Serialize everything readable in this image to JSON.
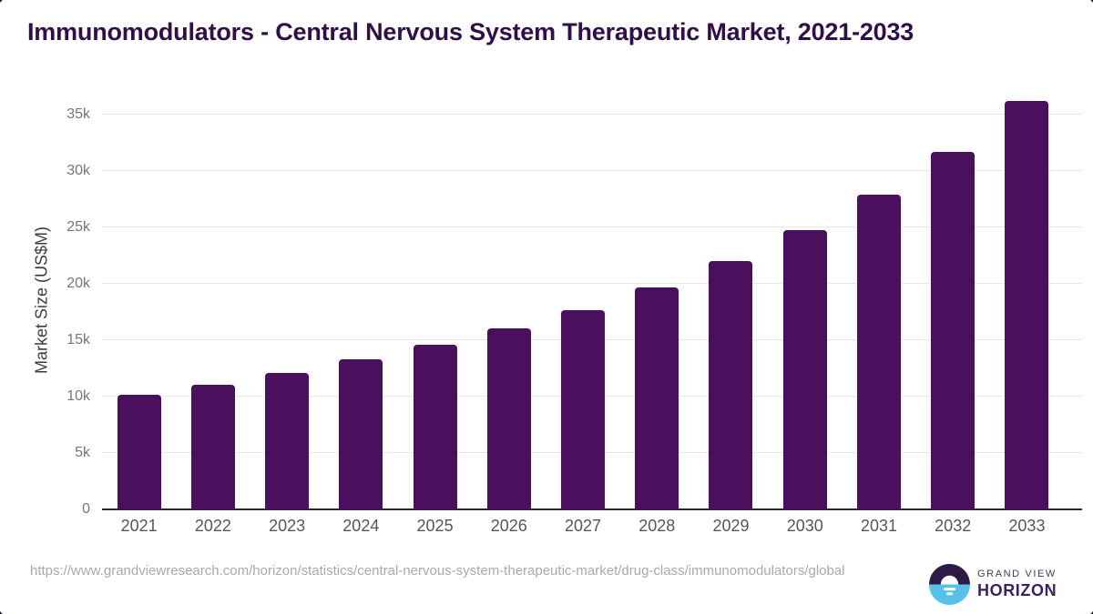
{
  "page": {
    "background": "#ffffff"
  },
  "chart_data": {
    "type": "bar",
    "title": "Immunomodulators - Central Nervous System Therapeutic Market, 2021-2033",
    "categories": [
      "2021",
      "2022",
      "2023",
      "2024",
      "2025",
      "2026",
      "2027",
      "2028",
      "2029",
      "2030",
      "2031",
      "2032",
      "2033"
    ],
    "values": [
      10150,
      11050,
      12100,
      13300,
      14600,
      16050,
      17700,
      19650,
      22000,
      24800,
      27900,
      31700,
      36200
    ],
    "xlabel": "",
    "ylabel": "Market Size (US$M)",
    "ylim": [
      0,
      37100
    ],
    "yticks": [
      {
        "value": 0,
        "label": "0"
      },
      {
        "value": 5000,
        "label": "5k"
      },
      {
        "value": 10000,
        "label": "10k"
      },
      {
        "value": 15000,
        "label": "15k"
      },
      {
        "value": 20000,
        "label": "20k"
      },
      {
        "value": 25000,
        "label": "25k"
      },
      {
        "value": 30000,
        "label": "30k"
      },
      {
        "value": 35000,
        "label": "35k"
      }
    ],
    "grid": "horizontal-light",
    "legend": "none",
    "bar_color": "#4a105d"
  },
  "footer": {
    "source_url": "https://www.grandviewresearch.com/horizon/statistics/central-nervous-system-therapeutic-market/drug-class/immunomodulators/global",
    "logo": {
      "line1": "GRAND VIEW",
      "line2": "HORIZON"
    }
  },
  "colors": {
    "title_text": "#300e48",
    "bar": "#4a105d",
    "axis_line": "#2b2b2b",
    "gridline": "#e7e7e7",
    "y_tick_text": "#767676",
    "x_label_text": "#565656",
    "axis_title_text": "#3d3d3d",
    "url_text": "#a9a9a9",
    "logo_circle_top": "#2e1a47",
    "logo_circle_bottom": "#56c2ea",
    "logo_text": "#3a2260"
  }
}
